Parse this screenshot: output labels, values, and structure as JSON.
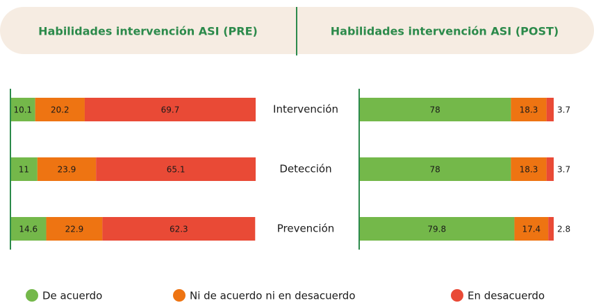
{
  "chart_data": [
    {
      "type": "bar",
      "orientation": "horizontal",
      "stacked": true,
      "title": "Habilidades intervención ASI (PRE)",
      "categories": [
        "Intervención",
        "Detección",
        "Prevención"
      ],
      "xlim": [
        0,
        100
      ],
      "series": [
        {
          "name": "De acuerdo",
          "color": "#74b84a",
          "values": [
            10.1,
            11,
            14.6
          ]
        },
        {
          "name": "Ni de acuerdo ni en desacuerdo",
          "color": "#ee7412",
          "values": [
            20.2,
            23.9,
            22.9
          ]
        },
        {
          "name": "En desacuerdo",
          "color": "#e94a36",
          "values": [
            69.7,
            65.1,
            62.3
          ]
        }
      ]
    },
    {
      "type": "bar",
      "orientation": "horizontal",
      "stacked": true,
      "title": "Habilidades intervención ASI (POST)",
      "xlim": [
        0,
        100
      ],
      "series": [
        {
          "color": "#74b84a",
          "values": [
            78,
            78,
            79.8
          ]
        },
        {
          "color": "#ee7412",
          "values": [
            18.3,
            18.3,
            17.4
          ]
        },
        {
          "color": "#e94a36",
          "values": [
            3.7,
            3.7,
            2.8
          ]
        }
      ]
    }
  ]
}
